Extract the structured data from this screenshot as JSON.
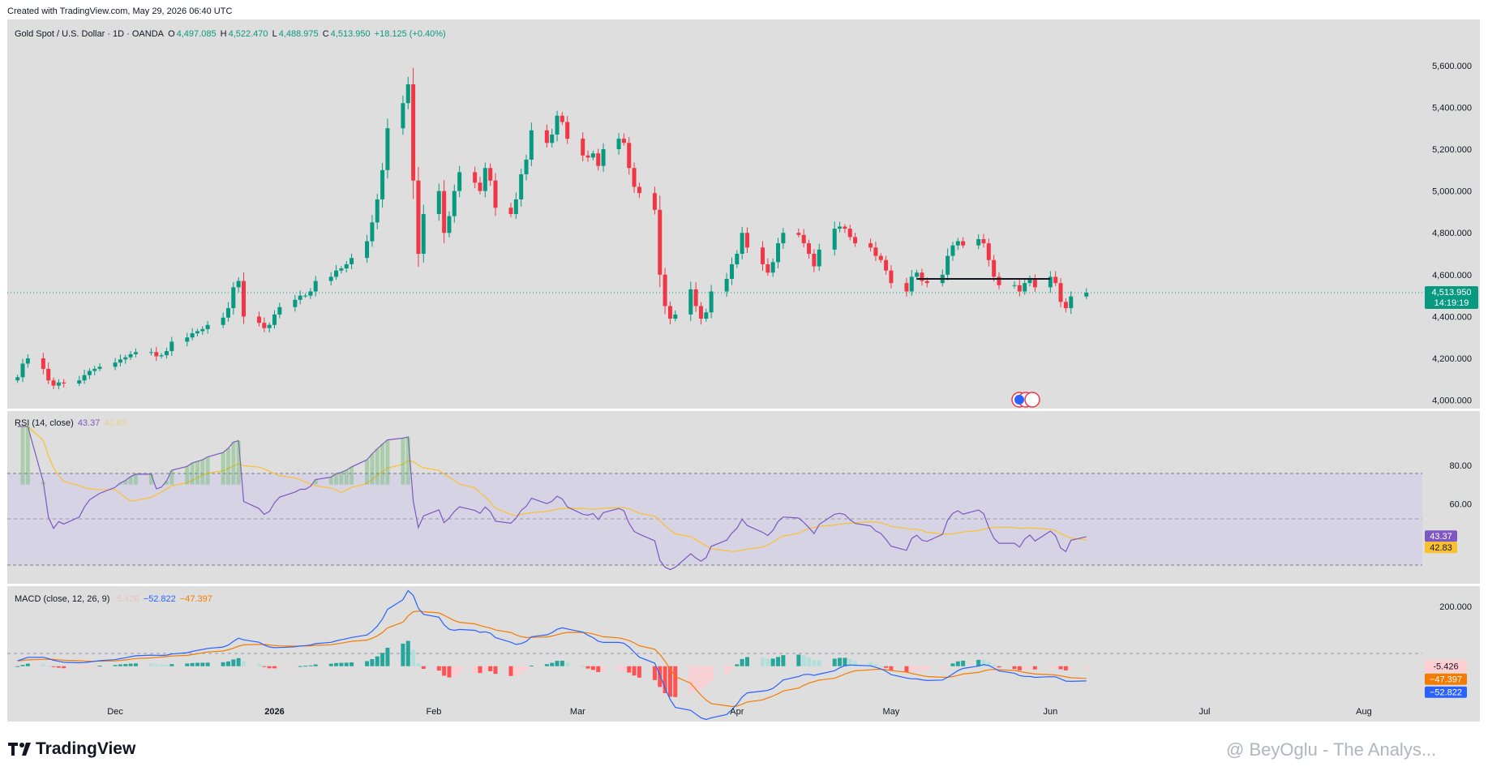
{
  "caption": "Created with TradingView.com, May 29, 2026 06:40 UTC",
  "main_legend": {
    "title": "Gold Spot / U.S. Dollar · 1D · OANDA",
    "open_label": "O",
    "open": "4,497.085",
    "high_label": "H",
    "high": "4,522.470",
    "low_label": "L",
    "low": "4,488.975",
    "close_label": "C",
    "close": "4,513.950",
    "change": "+18.125 (+0.40%)"
  },
  "price_label": {
    "price": "4,513.950",
    "countdown": "14:19:19"
  },
  "rsi_legend": {
    "title": "RSI (14, close)",
    "rsi": "43.37",
    "ma": "42.83"
  },
  "macd_legend": {
    "title": "MACD (close, 12, 26, 9)",
    "hist": "-5.426",
    "macd": "−52.822",
    "signal": "−47.397"
  },
  "footer": {
    "logo": "TradingView",
    "watermark": "@ BeyOglu - The Analys..."
  },
  "colors": {
    "up": "#089981",
    "down": "#f23645",
    "panel_bg": "#dedede",
    "rsi_band": "#d6d4e4",
    "rsi_line": "#7e57c2",
    "rsi_ma": "#fbc02d",
    "macd": "#2962ff",
    "signal": "#f57c00",
    "hline": "#131722"
  },
  "chart_data": [
    {
      "type": "candlestick",
      "title": "Gold Spot / U.S. Dollar · 1D · OANDA",
      "x_tick_labels": [
        "Dec",
        "2026",
        "Feb",
        "Mar",
        "Apr",
        "May",
        "Jun",
        "Jul",
        "Aug"
      ],
      "y_tick_labels": [
        "5,600.000",
        "5,400.000",
        "5,200.000",
        "5,000.000",
        "4,800.000",
        "4,600.000",
        "4,400.000",
        "4,200.000",
        "4,000.000"
      ],
      "y_ticks": [
        5600,
        5400,
        5200,
        5000,
        4800,
        4600,
        4400,
        4200,
        4000
      ],
      "ylim": [
        3960,
        5820
      ],
      "x_range": [
        "2025-11-10",
        "2026-08-25"
      ],
      "first_date": "2025-11-12",
      "last_price": 4513.95,
      "horizontal_line": {
        "value": 4580,
        "from": "2026-05-06",
        "to": "2026-06-01"
      },
      "closes": [
        4110,
        4175,
        4200,
        4150,
        4095,
        4070,
        4085,
        4080,
        4095,
        4120,
        4140,
        4150,
        4160,
        4180,
        4195,
        4205,
        4220,
        4230,
        4230,
        4210,
        4215,
        4235,
        4280,
        4300,
        4320,
        4330,
        4340,
        4360,
        4395,
        4440,
        4540,
        4570,
        4400,
        4370,
        4345,
        4360,
        4410,
        4445,
        4480,
        4500,
        4500,
        4520,
        4570,
        4590,
        4620,
        4630,
        4650,
        4680,
        4760,
        4850,
        4960,
        5100,
        5300,
        5420,
        5510,
        5050,
        4700,
        4890,
        5000,
        4800,
        4880,
        5000,
        5090,
        5040,
        5000,
        5110,
        5050,
        4920,
        4890,
        4960,
        5080,
        5150,
        5290,
        5230,
        5270,
        5360,
        5330,
        5250,
        5170,
        5160,
        5180,
        5120,
        5200,
        5250,
        5230,
        5110,
        5020,
        4990,
        4910,
        4600,
        4450,
        4390,
        4410,
        4530,
        4450,
        4390,
        4420,
        4520,
        4580,
        4650,
        4700,
        4800,
        4730,
        4650,
        4610,
        4660,
        4750,
        4800,
        4790,
        4750,
        4700,
        4640,
        4720,
        4820,
        4830,
        4820,
        4780,
        4750,
        4730,
        4690,
        4670,
        4620,
        4560,
        4520,
        4590,
        4610,
        4570,
        4560,
        4600,
        4690,
        4740,
        4760,
        4740,
        4770,
        4750,
        4670,
        4590,
        4550,
        4550,
        4520,
        4560,
        4580,
        4540,
        4590,
        4560,
        4470,
        4440,
        4496,
        4513.95
      ]
    },
    {
      "type": "line",
      "title": "RSI (14, close)",
      "y_tick_labels": [
        "80.00",
        "60.00"
      ],
      "bands": [
        70,
        50,
        30
      ],
      "ylim": [
        20,
        100
      ],
      "series": [
        {
          "name": "RSI",
          "last": 43.37
        },
        {
          "name": "MA",
          "last": 42.83
        }
      ]
    },
    {
      "type": "bar",
      "title": "MACD (close, 12, 26, 9)",
      "y_tick_labels": [
        "200.000"
      ],
      "ylim": [
        -180,
        260
      ],
      "series": [
        {
          "name": "Histogram",
          "last": -5.426
        },
        {
          "name": "MACD",
          "last": -52.822
        },
        {
          "name": "Signal",
          "last": -47.397
        }
      ]
    }
  ]
}
